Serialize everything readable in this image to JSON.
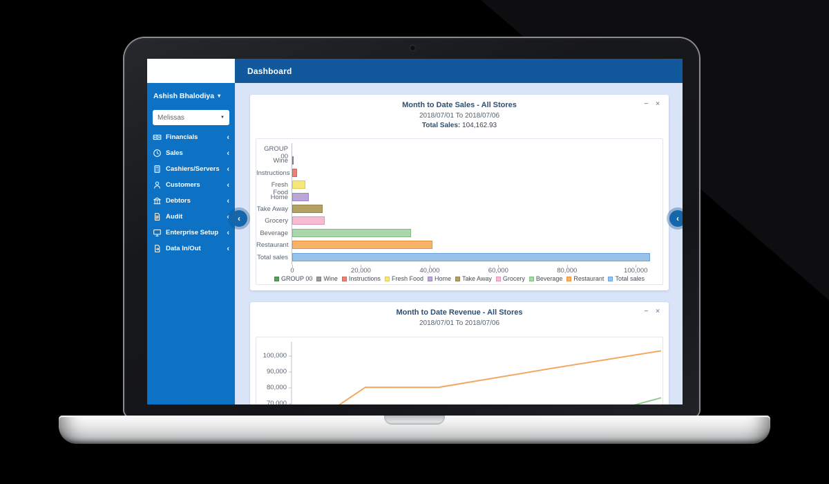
{
  "theme": {
    "topbar_blue": "#11589d",
    "sidebar_blue": "#0e72c4",
    "content_bg": "#dae4f8",
    "scroll_button_blue": "#1467ab"
  },
  "window": {
    "topbar_title": "Dashboard"
  },
  "sidebar": {
    "user": {
      "name": "Ashish Bhalodiya",
      "caret": "▾"
    },
    "store_select": {
      "value": "Melissas",
      "caret": "▼"
    },
    "collapse_chevron": "‹",
    "items": [
      {
        "icon": "money-icon",
        "label": "Financials"
      },
      {
        "icon": "clock-icon",
        "label": "Sales"
      },
      {
        "icon": "calculator-icon",
        "label": "Cashiers/Servers"
      },
      {
        "icon": "user-icon",
        "label": "Customers"
      },
      {
        "icon": "bank-icon",
        "label": "Debtors"
      },
      {
        "icon": "document-icon",
        "label": "Audit"
      },
      {
        "icon": "monitor-icon",
        "label": "Enterprise Setup"
      },
      {
        "icon": "file-transfer-icon",
        "label": "Data In/Out"
      }
    ]
  },
  "scroll_buttons": {
    "left": "‹",
    "right": "‹"
  },
  "panels": [
    {
      "title": "Month to Date Sales - All Stores",
      "subtitle": "2018/07/01 To 2018/07/06",
      "total_label": "Total Sales:",
      "total_value": "104,162.93",
      "controls": {
        "minimize": "−",
        "close": "×"
      }
    },
    {
      "title": "Month to Date Revenue - All Stores",
      "subtitle": "2018/07/01 To 2018/07/06",
      "controls": {
        "minimize": "−",
        "close": "×"
      }
    }
  ],
  "chart_data": [
    {
      "type": "bar",
      "orientation": "horizontal",
      "title": "Month to Date Sales - All Stores",
      "categories": [
        "GROUP 00",
        "Wine",
        "Instructions",
        "Fresh Food",
        "Home",
        "Take Away",
        "Grocery",
        "Beverage",
        "Restaurant",
        "Total sales"
      ],
      "values": [
        0,
        250,
        1400,
        3800,
        4900,
        8900,
        9500,
        34600,
        40800,
        104163
      ],
      "colors": [
        "#57a05c",
        "#9b9b9b",
        "#f08075",
        "#f5e878",
        "#bba6d8",
        "#b4a264",
        "#f6bcd4",
        "#abd6ab",
        "#f8b369",
        "#97c3ea"
      ],
      "border_colors": [
        "#3f8f43",
        "#7f7f7f",
        "#d96257",
        "#ddca4e",
        "#9c82c4",
        "#93824a",
        "#df94b6",
        "#82bb85",
        "#e3923f",
        "#6ba3d6"
      ],
      "xtick_values": [
        0,
        20000,
        40000,
        60000,
        80000,
        100000
      ],
      "xtick_labels": [
        "0",
        "20,000",
        "40,000",
        "60,000",
        "80,000",
        "100,000"
      ],
      "xlim": [
        0,
        108000
      ],
      "grid": false,
      "legend_position": "bottom"
    },
    {
      "type": "line",
      "title": "Month to Date Revenue - All Stores",
      "ytick_labels": [
        "100,000",
        "90,000",
        "80,000",
        "70,000"
      ],
      "ytick_values": [
        100000,
        90000,
        80000,
        70000
      ],
      "ylim_visible": [
        66000,
        107000
      ],
      "grid": false,
      "series": [
        {
          "name": "revenue-orange",
          "color": "#f2a95f",
          "points": [
            [
              0.095,
              64000
            ],
            [
              0.2,
              80400
            ],
            [
              0.397,
              80300
            ],
            [
              0.707,
              92400
            ],
            [
              1.0,
              103300
            ]
          ]
        },
        {
          "name": "revenue-green",
          "color": "#8fcb90",
          "points": [
            [
              0.892,
              67000
            ],
            [
              1.0,
              73800
            ]
          ]
        }
      ],
      "note": "chart partially visible; cropped by bottom edge of screen"
    }
  ]
}
